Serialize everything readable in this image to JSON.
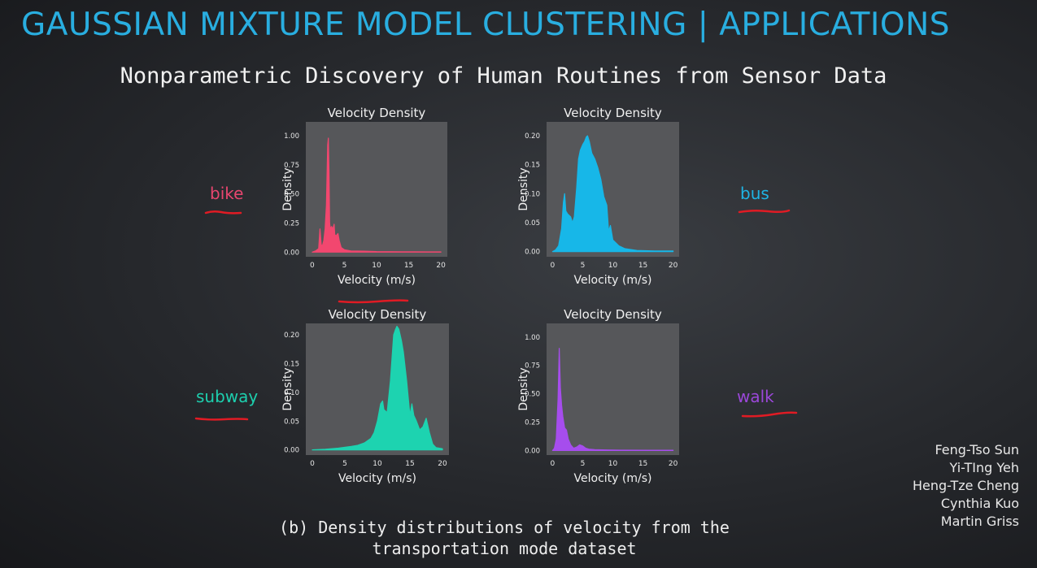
{
  "title": "GAUSSIAN MIXTURE MODEL CLUSTERING | APPLICATIONS",
  "subtitle": "Nonparametric Discovery of Human Routines from Sensor Data",
  "caption_lines": [
    "(b) Density distributions of velocity from the",
    "transportation mode dataset"
  ],
  "authors": [
    "Feng-Tso Sun",
    "Yi-TIng Yeh",
    "Heng-Tze Cheng",
    "Cynthia Kuo",
    "Martin Griss"
  ],
  "labels": {
    "bike": {
      "text": "bike",
      "color": "#e8466f"
    },
    "bus": {
      "text": "bus",
      "color": "#1fb4e4"
    },
    "subway": {
      "text": "subway",
      "color": "#1dcfae"
    },
    "walk": {
      "text": "walk",
      "color": "#9b47d9"
    }
  },
  "annotation_color": "#e01b24",
  "chart_data": [
    {
      "id": "bike",
      "type": "area",
      "title": "Velocity Density",
      "xlabel": "Velocity (m/s)",
      "ylabel": "Density",
      "color": "#f2476f",
      "xlim": [
        -1,
        21
      ],
      "ylim": [
        -0.04,
        1.12
      ],
      "xticks": [
        0,
        5,
        10,
        15,
        20
      ],
      "xtick_labels": [
        "0",
        "5",
        "10",
        "15",
        "20"
      ],
      "yticks": [
        0,
        0.25,
        0.5,
        0.75,
        1.0
      ],
      "ytick_labels": [
        "0.00",
        "0.25",
        "0.50",
        "0.75",
        "1.00"
      ],
      "x": [
        0,
        0.5,
        1.0,
        1.2,
        1.4,
        1.6,
        1.8,
        2.0,
        2.2,
        2.4,
        2.5,
        2.6,
        2.7,
        2.8,
        3.0,
        3.2,
        3.4,
        3.5,
        3.7,
        4.0,
        4.2,
        4.5,
        5.0,
        6,
        8,
        10,
        14,
        18,
        20
      ],
      "y": [
        0,
        0.01,
        0.03,
        0.2,
        0.06,
        0.06,
        0.1,
        0.2,
        0.4,
        0.92,
        0.98,
        0.7,
        0.25,
        0.2,
        0.22,
        0.2,
        0.24,
        0.15,
        0.14,
        0.16,
        0.1,
        0.04,
        0.02,
        0.01,
        0.008,
        0.005,
        0.003,
        0.002,
        0.002
      ]
    },
    {
      "id": "bus",
      "type": "area",
      "title": "Velocity Density",
      "xlabel": "Velocity (m/s)",
      "ylabel": "Density",
      "color": "#17b7e8",
      "xlim": [
        -1,
        21
      ],
      "ylim": [
        -0.009,
        0.224
      ],
      "xticks": [
        0,
        5,
        10,
        15,
        20
      ],
      "xtick_labels": [
        "0",
        "5",
        "10",
        "15",
        "20"
      ],
      "yticks": [
        0,
        0.05,
        0.1,
        0.15,
        0.2
      ],
      "ytick_labels": [
        "0.00",
        "0.05",
        "0.10",
        "0.15",
        "0.20"
      ],
      "x": [
        0,
        0.5,
        1.0,
        1.5,
        1.8,
        2.0,
        2.2,
        2.5,
        3.0,
        3.3,
        3.6,
        4.0,
        4.3,
        4.6,
        5.0,
        5.3,
        5.6,
        5.8,
        6.1,
        6.5,
        7.0,
        7.5,
        8.0,
        8.5,
        9.0,
        9.3,
        9.6,
        10.0,
        11.0,
        12,
        14,
        17,
        20
      ],
      "y": [
        0,
        0.003,
        0.01,
        0.04,
        0.085,
        0.1,
        0.07,
        0.065,
        0.06,
        0.05,
        0.06,
        0.11,
        0.16,
        0.175,
        0.185,
        0.19,
        0.198,
        0.2,
        0.19,
        0.17,
        0.16,
        0.145,
        0.125,
        0.095,
        0.08,
        0.035,
        0.045,
        0.02,
        0.01,
        0.005,
        0.002,
        0.001,
        0.001
      ]
    },
    {
      "id": "subway",
      "type": "area",
      "title": "Velocity Density",
      "xlabel": "Velocity (m/s)",
      "ylabel": "Density",
      "color": "#1dd3b0",
      "xlim": [
        -1,
        21
      ],
      "ylim": [
        -0.009,
        0.22
      ],
      "xticks": [
        0,
        5,
        10,
        15,
        20
      ],
      "xtick_labels": [
        "0",
        "5",
        "10",
        "15",
        "20"
      ],
      "yticks": [
        0,
        0.05,
        0.1,
        0.15,
        0.2
      ],
      "ytick_labels": [
        "0.00",
        "0.05",
        "0.10",
        "0.15",
        "0.20"
      ],
      "x": [
        0,
        2,
        4,
        6,
        7,
        8,
        9,
        9.5,
        10,
        10.5,
        10.8,
        11,
        11.5,
        12,
        12.5,
        12.8,
        13,
        13.3,
        13.7,
        14,
        14.5,
        15,
        15.3,
        15.6,
        16,
        16.5,
        17,
        17.5,
        18,
        18.5,
        19,
        20
      ],
      "y": [
        0,
        0.001,
        0.003,
        0.006,
        0.008,
        0.012,
        0.02,
        0.03,
        0.05,
        0.08,
        0.085,
        0.07,
        0.065,
        0.12,
        0.2,
        0.21,
        0.215,
        0.21,
        0.19,
        0.17,
        0.12,
        0.06,
        0.08,
        0.06,
        0.05,
        0.035,
        0.04,
        0.055,
        0.03,
        0.01,
        0.004,
        0.002
      ]
    },
    {
      "id": "walk",
      "type": "area",
      "title": "Velocity Density",
      "xlabel": "Velocity (m/s)",
      "ylabel": "Density",
      "color": "#a64ded",
      "xlim": [
        -1,
        21
      ],
      "ylim": [
        -0.04,
        1.12
      ],
      "xticks": [
        0,
        5,
        10,
        15,
        20
      ],
      "xtick_labels": [
        "0",
        "5",
        "10",
        "15",
        "20"
      ],
      "yticks": [
        0,
        0.25,
        0.5,
        0.75,
        1.0
      ],
      "ytick_labels": [
        "0.00",
        "0.25",
        "0.50",
        "0.75",
        "1.00"
      ],
      "x": [
        0,
        0.3,
        0.6,
        0.9,
        1.1,
        1.3,
        1.5,
        1.7,
        2.0,
        2.3,
        2.6,
        3.0,
        3.5,
        4.0,
        4.5,
        5.0,
        5.5,
        6.0,
        7,
        9,
        12,
        16,
        20
      ],
      "y": [
        0,
        0.02,
        0.1,
        0.45,
        0.9,
        0.55,
        0.4,
        0.3,
        0.2,
        0.18,
        0.1,
        0.05,
        0.02,
        0.03,
        0.05,
        0.04,
        0.02,
        0.012,
        0.008,
        0.005,
        0.003,
        0.002,
        0.002
      ]
    }
  ]
}
